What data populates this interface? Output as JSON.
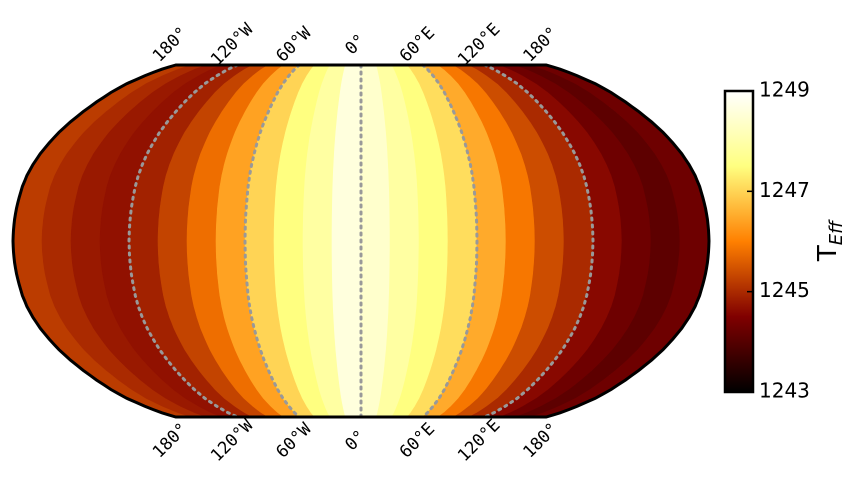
{
  "chart_data": {
    "type": "map",
    "lon_bins": [
      -180,
      -165,
      -150,
      -135,
      -120,
      -105,
      -90,
      -75,
      -60,
      -45,
      -30,
      -15,
      0,
      15,
      30,
      45,
      60,
      75,
      90,
      105,
      120,
      135,
      150,
      165,
      180
    ],
    "values": [
      1245.2,
      1245.0,
      1244.8,
      1244.7,
      1244.9,
      1245.3,
      1245.8,
      1246.4,
      1247.0,
      1247.5,
      1247.9,
      1248.6,
      1248.4,
      1247.9,
      1247.5,
      1247.1,
      1246.5,
      1245.9,
      1245.4,
      1245.0,
      1244.6,
      1244.3,
      1244.1,
      1244.3
    ],
    "lon_labels": [
      {
        "value": -180,
        "label": "180°"
      },
      {
        "value": -120,
        "label": "120°W"
      },
      {
        "value": -60,
        "label": "60°W"
      },
      {
        "value": 0,
        "label": "0°"
      },
      {
        "value": 60,
        "label": "60°E"
      },
      {
        "value": 120,
        "label": "120°E"
      },
      {
        "value": 180,
        "label": "180°"
      }
    ],
    "clim": [
      1243,
      1249
    ],
    "cticks": [
      1243,
      1245,
      1247,
      1249
    ],
    "colorbar_label": {
      "main": "T",
      "sub": "Eff"
    },
    "colormap": "afmhot"
  }
}
